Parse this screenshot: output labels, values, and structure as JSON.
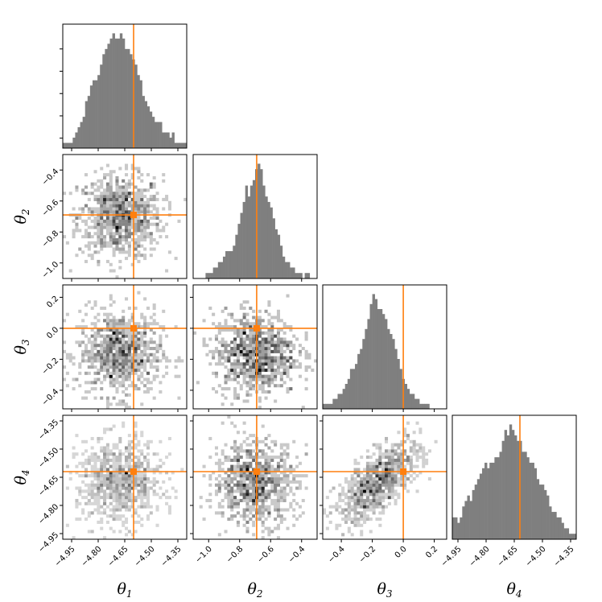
{
  "chart_data": {
    "type": "corner",
    "truth_color": "#ff7f0e",
    "hist_color": "#7f7f7f",
    "parameters": [
      {
        "symbol": "θ",
        "sub": "1",
        "range": [
          -5.0,
          -4.3
        ],
        "ticks": [
          -4.95,
          -4.8,
          -4.65,
          -4.5,
          -4.35
        ],
        "tick_labels": [
          "−4.95",
          "−4.80",
          "−4.65",
          "−4.50",
          "−4.35"
        ],
        "truth": -4.6
      },
      {
        "symbol": "θ",
        "sub": "2",
        "range": [
          -1.1,
          -0.3
        ],
        "ticks": [
          -1.0,
          -0.8,
          -0.6,
          -0.4
        ],
        "tick_labels": [
          "−1.0",
          "−0.8",
          "−0.6",
          "−0.4"
        ],
        "truth": -0.69
      },
      {
        "symbol": "θ",
        "sub": "3",
        "range": [
          -0.52,
          0.28
        ],
        "ticks": [
          -0.4,
          -0.2,
          0.0,
          0.2
        ],
        "tick_labels": [
          "−0.4",
          "−0.2",
          "0.0",
          "0.2"
        ],
        "truth": 0.0
      },
      {
        "symbol": "θ",
        "sub": "4",
        "range": [
          -4.98,
          -4.32
        ],
        "ticks": [
          -4.95,
          -4.8,
          -4.65,
          -4.5,
          -4.35
        ],
        "tick_labels": [
          "−4.95",
          "−4.80",
          "−4.65",
          "−4.50",
          "−4.35"
        ],
        "truth": -4.62
      }
    ],
    "histograms": [
      {
        "param": 1,
        "counts": [
          1,
          1,
          1,
          1,
          2,
          3,
          4,
          5,
          6,
          9,
          10,
          12,
          13,
          13,
          14,
          16,
          18,
          19,
          20,
          21,
          22,
          21,
          21,
          22,
          21,
          19,
          19,
          18,
          17,
          16,
          14,
          13,
          10,
          9,
          8,
          7,
          6,
          5,
          5,
          5,
          3,
          3,
          3,
          2,
          3,
          1,
          1,
          1,
          1,
          1
        ]
      },
      {
        "param": 2,
        "counts": [
          0,
          0,
          0,
          0,
          0,
          1,
          1,
          1,
          2,
          2,
          3,
          3,
          4,
          5,
          5,
          5,
          6,
          8,
          10,
          12,
          14,
          17,
          15,
          17,
          18,
          20,
          21,
          20,
          17,
          15,
          14,
          13,
          11,
          9,
          8,
          6,
          4,
          3,
          3,
          2,
          2,
          1,
          1,
          1,
          0,
          1,
          1,
          0,
          0,
          0
        ]
      },
      {
        "param": 3,
        "counts": [
          1,
          1,
          1,
          1,
          2,
          2,
          3,
          3,
          4,
          5,
          6,
          8,
          8,
          9,
          11,
          12,
          14,
          16,
          18,
          21,
          23,
          22,
          20,
          20,
          19,
          18,
          16,
          15,
          14,
          12,
          10,
          8,
          6,
          5,
          4,
          3,
          3,
          2,
          2,
          1,
          1,
          1,
          1,
          0,
          0,
          0,
          0,
          0,
          0,
          0
        ]
      },
      {
        "param": 4,
        "counts": [
          4,
          4,
          3,
          4,
          6,
          7,
          8,
          7,
          9,
          10,
          11,
          12,
          13,
          14,
          13,
          14,
          14,
          15,
          15,
          16,
          18,
          20,
          19,
          21,
          20,
          19,
          18,
          18,
          16,
          16,
          15,
          14,
          14,
          13,
          11,
          10,
          10,
          9,
          8,
          6,
          5,
          5,
          4,
          4,
          3,
          2,
          2,
          1,
          1,
          1
        ]
      }
    ],
    "correlations": {
      "2-1": 0.0,
      "3-1": 0.0,
      "3-2": 0.0,
      "4-1": 0.0,
      "4-2": 0.0,
      "4-3": 0.7
    }
  }
}
